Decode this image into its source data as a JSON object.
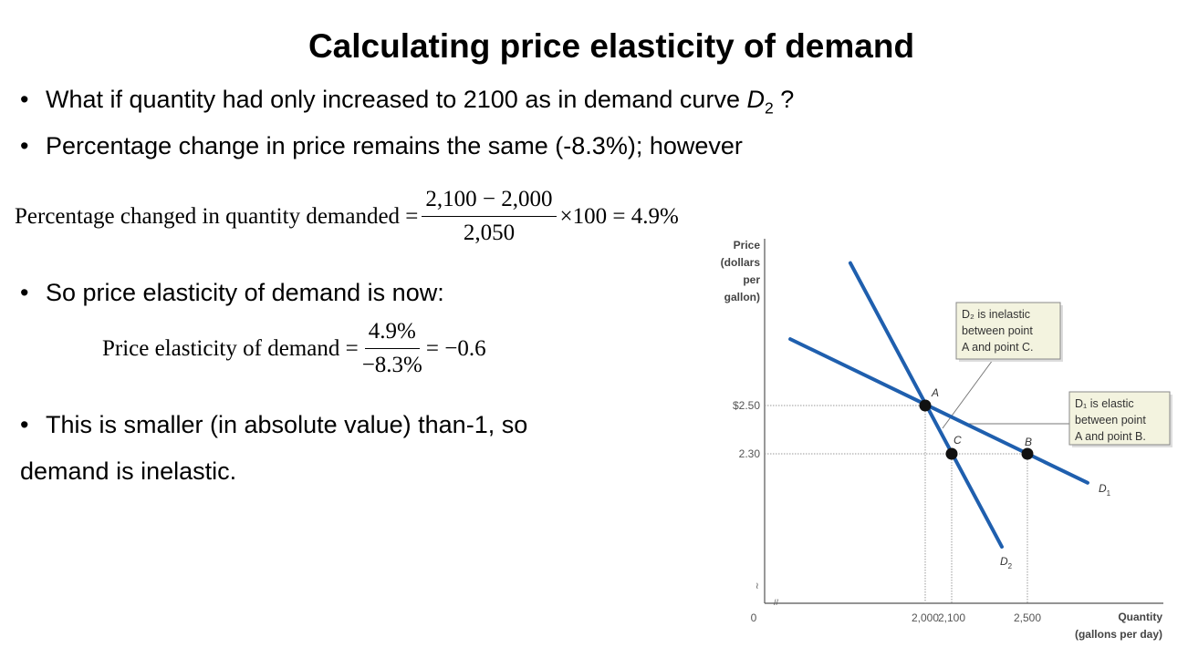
{
  "title": "Calculating price elasticity of demand",
  "bullets": [
    {
      "text": "What if quantity had only increased to 2100 as in demand curve ",
      "var": "D",
      "sub": "2",
      "tail": " ?"
    },
    {
      "text": "Percentage change in price remains the same (-8.3%); however"
    },
    {
      "text": "So price elasticity of demand is now:"
    },
    {
      "text": "This is smaller (in absolute value) than-1, so"
    }
  ],
  "continuation": "demand is inelastic.",
  "equation1": {
    "lhs": "Percentage changed in quantity demanded =",
    "numerator": "2,100 − 2,000",
    "denominator": "2,050",
    "rhs": "×100 = 4.9%"
  },
  "equation2": {
    "lhs": "Price elasticity of demand =",
    "numerator": "4.9%",
    "denominator": "−8.3%",
    "rhs": "= −0.6"
  },
  "chart_data": {
    "type": "line",
    "ylabel": [
      "Price",
      "(dollars",
      "per",
      "gallon)"
    ],
    "xlabel": [
      "Quantity",
      "(gallons per day)"
    ],
    "origin_label": "0",
    "x_ticks": [
      {
        "value": 2000,
        "label": "2,000"
      },
      {
        "value": 2100,
        "label": "2,100"
      },
      {
        "value": 2500,
        "label": "2,500"
      }
    ],
    "y_ticks": [
      {
        "value": 2.5,
        "label": "$2.50"
      },
      {
        "value": 2.3,
        "label": "2.30"
      }
    ],
    "series": [
      {
        "name": "D1",
        "label": "D",
        "sub": "1",
        "points": [
          [
            1490,
            2.775
          ],
          [
            2818,
            2.18
          ]
        ]
      },
      {
        "name": "D2",
        "label": "D",
        "sub": "2",
        "points": [
          [
            1717,
            3.09
          ],
          [
            2365,
            1.915
          ]
        ]
      }
    ],
    "points": [
      {
        "name": "A",
        "q": 2000,
        "p": 2.5
      },
      {
        "name": "B",
        "q": 2500,
        "p": 2.3
      },
      {
        "name": "C",
        "q": 2100,
        "p": 2.3
      }
    ],
    "annotations": [
      {
        "lines": [
          "D₂ is inelastic",
          "between point",
          "A and point C."
        ]
      },
      {
        "lines": [
          "D₁ is elastic",
          "between point",
          "A and point B."
        ]
      }
    ],
    "colors": {
      "curve": "#1f5fae",
      "box": "#f3f3df"
    }
  }
}
